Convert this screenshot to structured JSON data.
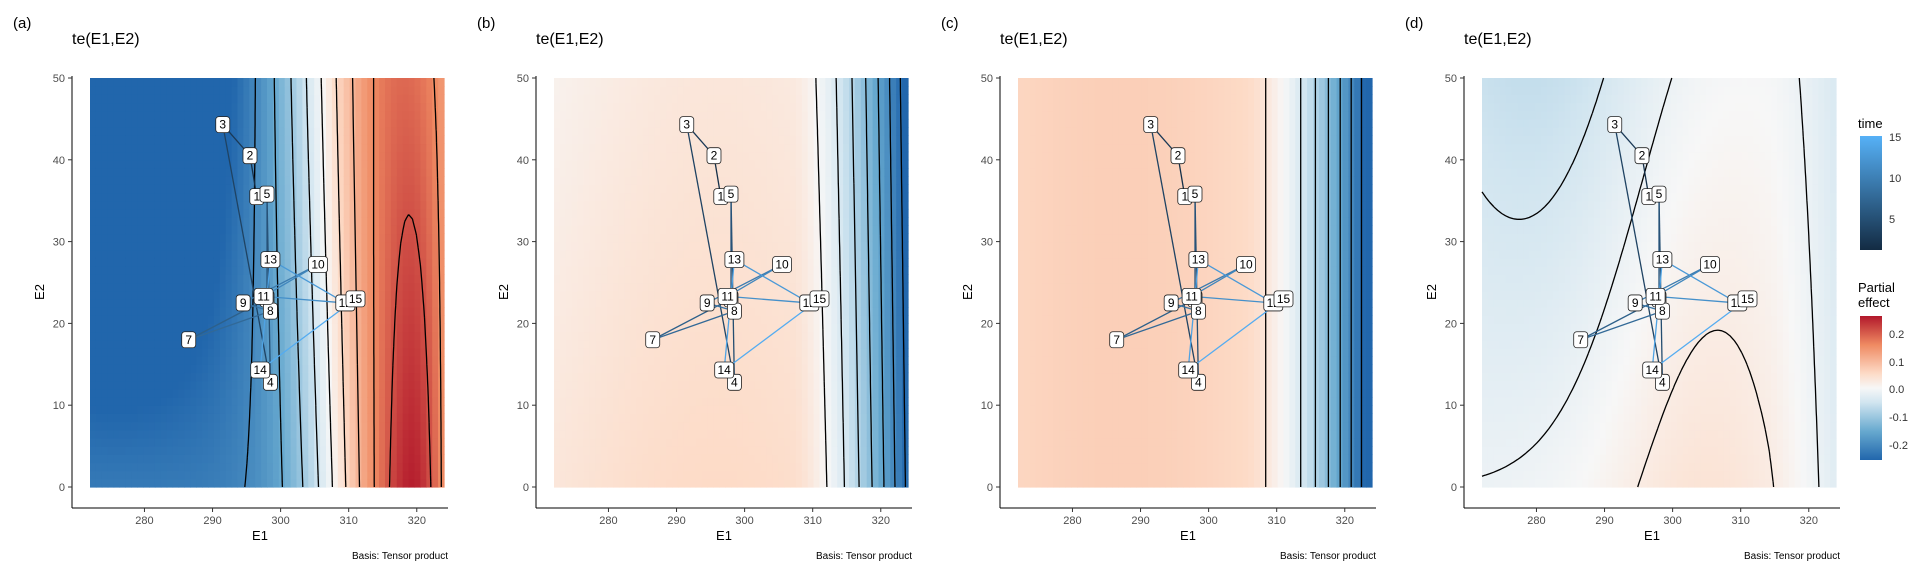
{
  "legend": {
    "time_title": "time",
    "time_ticks": [
      "15",
      "10",
      "5"
    ],
    "time_colors": [
      "#132B43",
      "#56B1F7"
    ],
    "effect_title_line1": "Partial",
    "effect_title_line2": "effect",
    "effect_ticks": [
      "0.2",
      "0.1",
      "0.0",
      "-0.1",
      "-0.2"
    ],
    "effect_colors": [
      "#b2182b",
      "#ef8a62",
      "#fddbc7",
      "#f7f7f7",
      "#d1e5f0",
      "#67a9cf",
      "#2166ac"
    ]
  },
  "panels": [
    {
      "tag": "(a)",
      "title": "te(E1,E2)",
      "xlabel": "E1",
      "ylabel": "E2",
      "caption": "Basis: Tensor product"
    },
    {
      "tag": "(b)",
      "title": "te(E1,E2)",
      "xlabel": "E1",
      "ylabel": "E2",
      "caption": "Basis: Tensor product"
    },
    {
      "tag": "(c)",
      "title": "te(E1,E2)",
      "xlabel": "E1",
      "ylabel": "E2",
      "caption": "Basis: Tensor product"
    },
    {
      "tag": "(d)",
      "title": "te(E1,E2)",
      "xlabel": "E1",
      "ylabel": "E2",
      "caption": "Basis: Tensor product"
    }
  ],
  "chart_data": [
    {
      "type": "heatmap",
      "title": "te(E1,E2)",
      "xlabel": "E1",
      "ylabel": "E2",
      "xlim": [
        272,
        324
      ],
      "ylim": [
        0,
        50
      ],
      "xticks": [
        280,
        290,
        300,
        310,
        320
      ],
      "yticks": [
        0,
        10,
        20,
        30,
        40,
        50
      ],
      "color_scale": {
        "name": "Partial effect",
        "range": [
          -0.25,
          0.25
        ]
      },
      "overlay": {
        "type": "path",
        "color_by": "time",
        "time_range": [
          1,
          15
        ],
        "points": [
          {
            "label": "1",
            "x": 296.5,
            "y": 35.5,
            "time": 1
          },
          {
            "label": "2",
            "x": 295.5,
            "y": 40.5,
            "time": 2
          },
          {
            "label": "3",
            "x": 291.5,
            "y": 44.3,
            "time": 3
          },
          {
            "label": "4",
            "x": 298.5,
            "y": 12.8,
            "time": 4
          },
          {
            "label": "5",
            "x": 298.0,
            "y": 35.8,
            "time": 5
          },
          {
            "label": "6",
            "x": 298.0,
            "y": 23.0,
            "time": 6
          },
          {
            "label": "7",
            "x": 286.5,
            "y": 18.0,
            "time": 7
          },
          {
            "label": "8",
            "x": 298.5,
            "y": 21.5,
            "time": 8
          },
          {
            "label": "9",
            "x": 294.5,
            "y": 22.5,
            "time": 9
          },
          {
            "label": "10",
            "x": 305.5,
            "y": 27.2,
            "time": 10
          },
          {
            "label": "11",
            "x": 297.5,
            "y": 23.3,
            "time": 11
          },
          {
            "label": "12",
            "x": 309.5,
            "y": 22.5,
            "time": 12
          },
          {
            "label": "13",
            "x": 298.5,
            "y": 27.8,
            "time": 13
          },
          {
            "label": "14",
            "x": 297.0,
            "y": 14.3,
            "time": 14
          },
          {
            "label": "15",
            "x": 311.0,
            "y": 23.0,
            "time": 15
          }
        ]
      }
    },
    {
      "type": "heatmap",
      "title": "te(E1,E2)",
      "xlabel": "E1",
      "ylabel": "E2",
      "xlim": [
        272,
        324
      ],
      "ylim": [
        0,
        50
      ],
      "xticks": [
        280,
        290,
        300,
        310,
        320
      ],
      "yticks": [
        0,
        10,
        20,
        30,
        40,
        50
      ],
      "color_scale": {
        "name": "Partial effect",
        "range": [
          -0.25,
          0.25
        ]
      },
      "overlay": {
        "type": "path",
        "color_by": "time",
        "same_points_as": "panel (a)"
      }
    },
    {
      "type": "heatmap",
      "title": "te(E1,E2)",
      "xlabel": "E1",
      "ylabel": "E2",
      "xlim": [
        272,
        324
      ],
      "ylim": [
        0,
        50
      ],
      "xticks": [
        280,
        290,
        300,
        310,
        320
      ],
      "yticks": [
        0,
        10,
        20,
        30,
        40,
        50
      ],
      "color_scale": {
        "name": "Partial effect",
        "range": [
          -0.25,
          0.25
        ]
      },
      "overlay": {
        "type": "path",
        "color_by": "time",
        "same_points_as": "panel (a)"
      }
    },
    {
      "type": "heatmap",
      "title": "te(E1,E2)",
      "xlabel": "E1",
      "ylabel": "E2",
      "xlim": [
        272,
        324
      ],
      "ylim": [
        0,
        50
      ],
      "xticks": [
        280,
        290,
        300,
        310,
        320
      ],
      "yticks": [
        0,
        10,
        20,
        30,
        40,
        50
      ],
      "color_scale": {
        "name": "Partial effect",
        "range": [
          -0.25,
          0.25
        ]
      },
      "overlay": {
        "type": "path",
        "color_by": "time",
        "same_points_as": "panel (a)"
      }
    }
  ]
}
